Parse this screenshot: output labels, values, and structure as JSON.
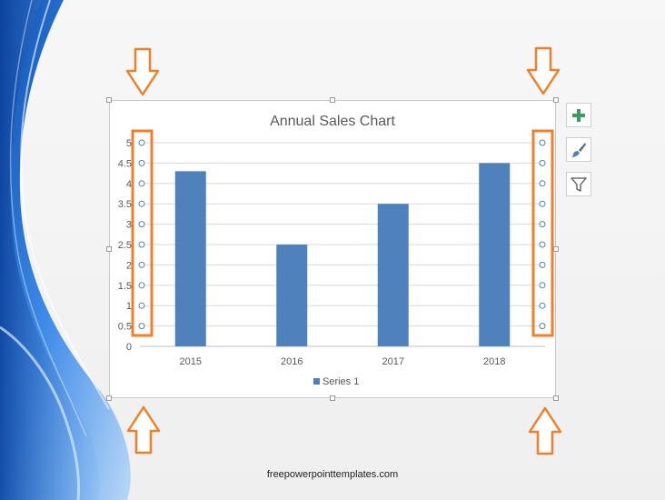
{
  "footer_text": "freepowerpointtemplates.com",
  "toolbar": {
    "add_icon": "plus-icon",
    "style_icon": "paintbrush-icon",
    "filter_icon": "funnel-icon"
  },
  "colors": {
    "bar": "#4f81bd",
    "accent_orange": "#f07f29",
    "add_green": "#3a9d5d"
  },
  "chart_data": {
    "type": "bar",
    "title": "Annual Sales Chart",
    "categories": [
      "2015",
      "2016",
      "2017",
      "2018"
    ],
    "series": [
      {
        "name": "Series 1",
        "values": [
          4.3,
          2.5,
          3.5,
          4.5
        ]
      }
    ],
    "ylim": [
      0,
      5
    ],
    "yticks": [
      "0",
      "0.5",
      "1",
      "1.5",
      "2",
      "2.5",
      "3",
      "3.5",
      "4",
      "4.5",
      "5"
    ],
    "grid": true,
    "legend": "bottom"
  }
}
